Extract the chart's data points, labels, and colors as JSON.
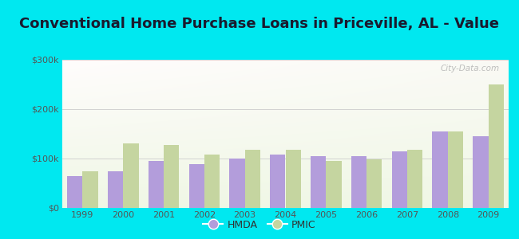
{
  "title": "Conventional Home Purchase Loans in Priceville, AL - Value",
  "years": [
    1999,
    2000,
    2001,
    2002,
    2003,
    2004,
    2005,
    2006,
    2007,
    2008,
    2009
  ],
  "hmda_values": [
    65000,
    75000,
    95000,
    88000,
    100000,
    108000,
    105000,
    105000,
    115000,
    155000,
    145000
  ],
  "pmic_values": [
    75000,
    130000,
    128000,
    108000,
    118000,
    118000,
    95000,
    98000,
    118000,
    155000,
    250000
  ],
  "hmda_color": "#b39ddb",
  "pmic_color": "#c5d5a0",
  "ylim": [
    0,
    300000
  ],
  "yticks": [
    0,
    100000,
    200000,
    300000
  ],
  "ytick_labels": [
    "$0",
    "$100k",
    "$200k",
    "$300k"
  ],
  "background_color": "#00e8f0",
  "bar_width": 0.38,
  "title_fontsize": 13,
  "legend_labels": [
    "HMDA",
    "PMIC"
  ],
  "watermark": "City-Data.com"
}
